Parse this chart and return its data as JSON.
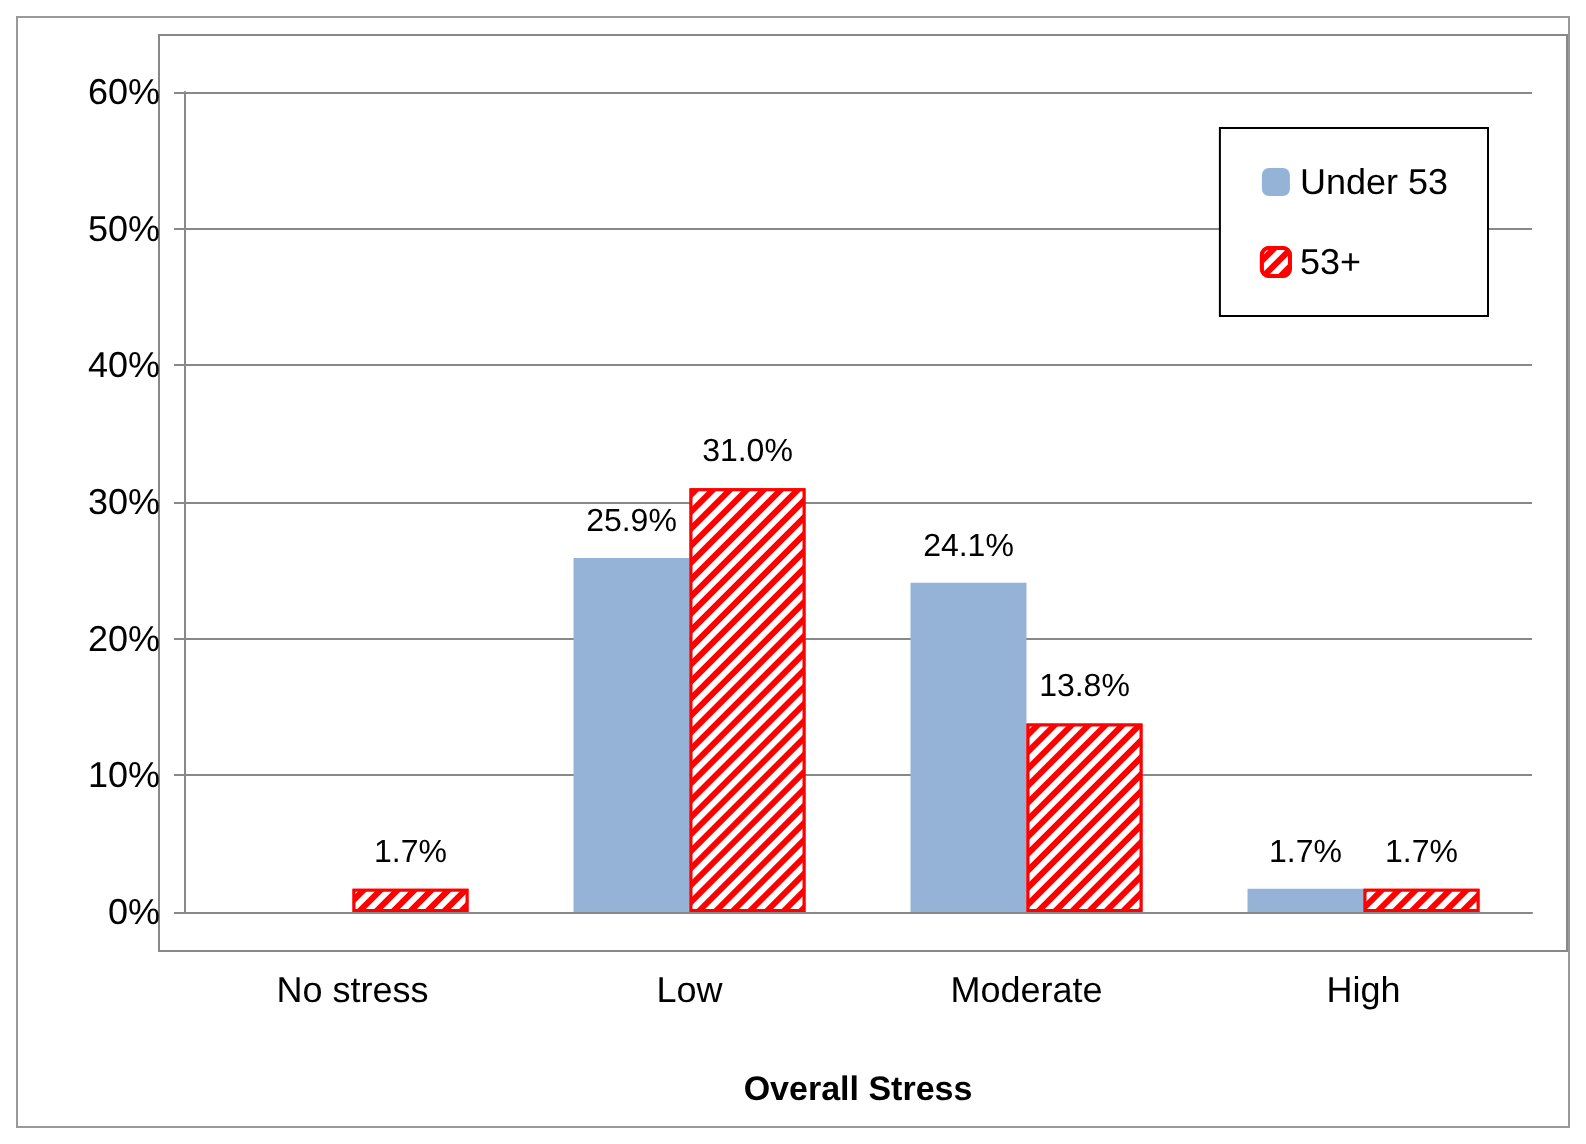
{
  "chart_data": {
    "type": "bar",
    "xlabel": "Overall Stress",
    "categories": [
      "No stress",
      "Low",
      "Moderate",
      "High"
    ],
    "series": [
      {
        "name": "Under 53",
        "color": "#95b3d7",
        "values": [
          null,
          25.9,
          24.1,
          1.7
        ],
        "value_labels": [
          null,
          "25.9%",
          "24.1%",
          "1.7%"
        ]
      },
      {
        "name": "53+",
        "color": "#ff0000",
        "values": [
          1.7,
          31.0,
          13.8,
          1.7
        ],
        "value_labels": [
          "1.7%",
          "31.0%",
          "13.8%",
          "1.7%"
        ]
      }
    ],
    "ylim": [
      0,
      60
    ],
    "yticks": [
      {
        "value": 0,
        "label": "0%"
      },
      {
        "value": 10,
        "label": "10%"
      },
      {
        "value": 20,
        "label": "20%"
      },
      {
        "value": 30,
        "label": "30%"
      },
      {
        "value": 40,
        "label": "40%"
      },
      {
        "value": 50,
        "label": "50%"
      },
      {
        "value": 60,
        "label": "60%"
      }
    ],
    "grid": "y",
    "legend": "top right"
  }
}
